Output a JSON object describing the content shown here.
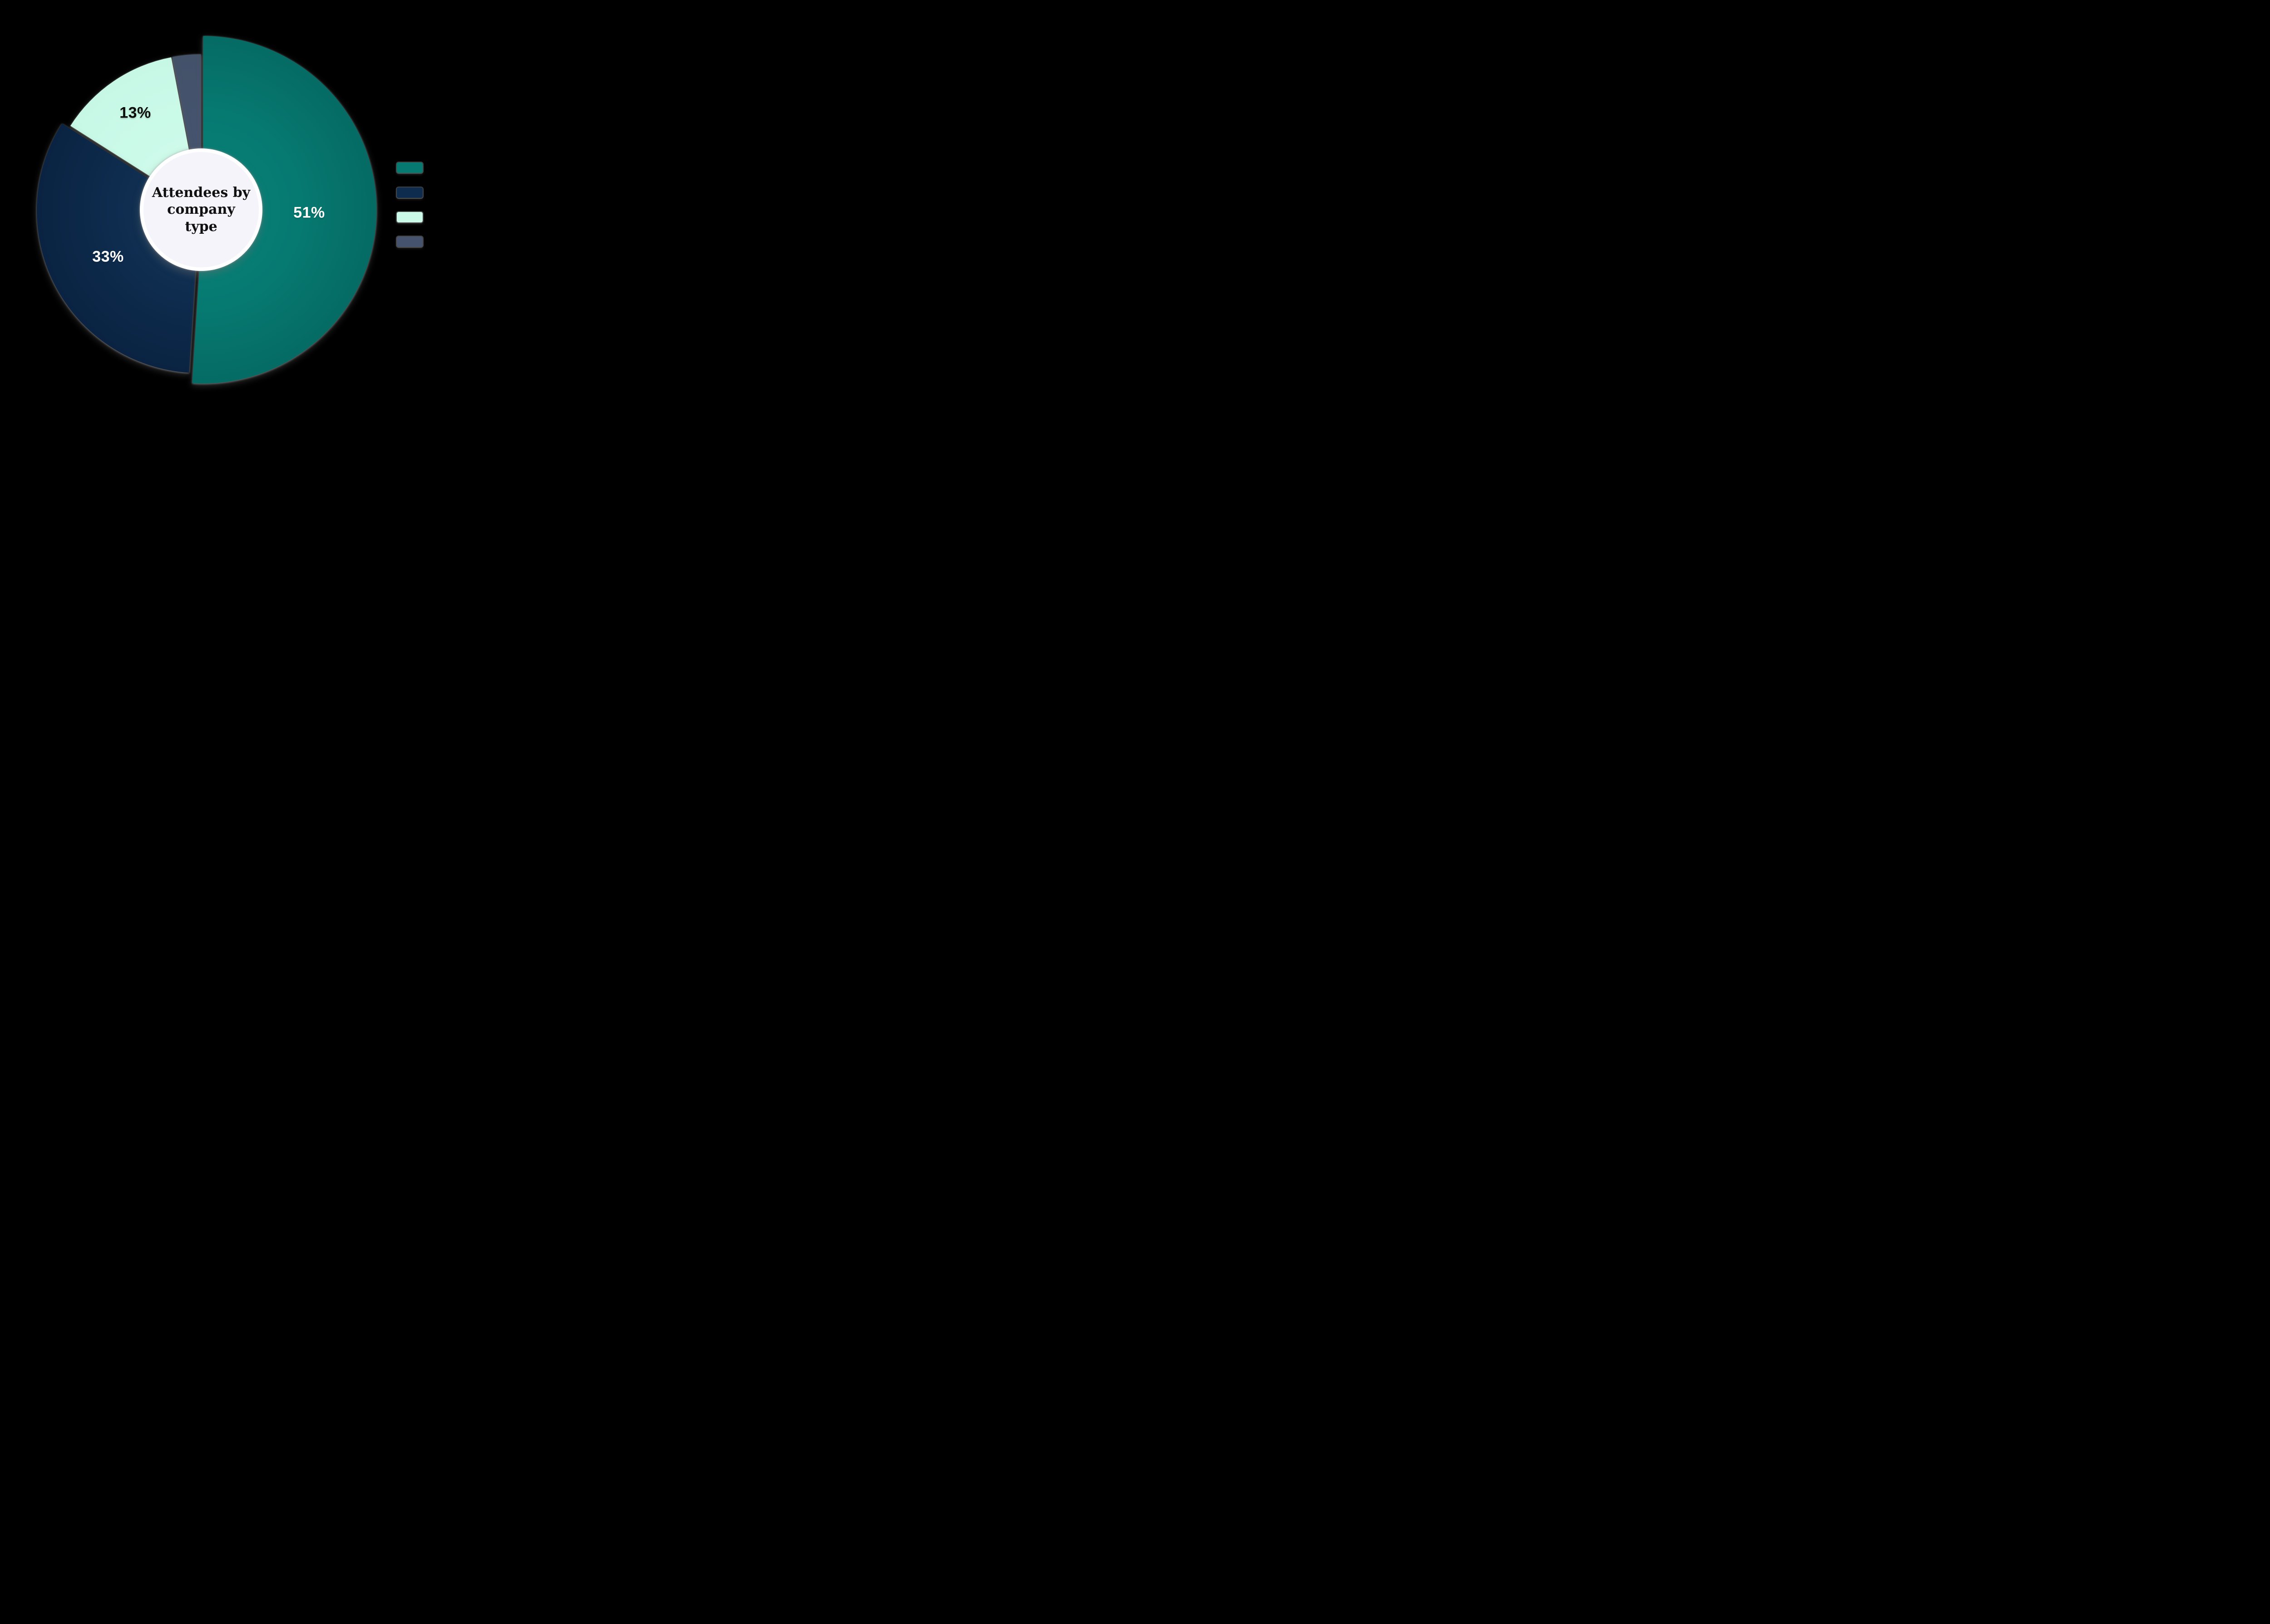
{
  "background_color": "#000000",
  "chart_data": {
    "type": "pie",
    "donut": true,
    "center_title": "Attendees by company type",
    "direction": "clockwise",
    "start_angle_deg": 0,
    "slices": [
      {
        "name": "teal",
        "value": 51,
        "label": "51%",
        "label_visible": true,
        "label_color": "#ffffff",
        "color": "#067a71",
        "color_inner": "#078279",
        "color_outer": "#056b64"
      },
      {
        "name": "navy",
        "value": 33,
        "label": "33%",
        "label_visible": true,
        "label_color": "#ffffff",
        "color": "#0e2c4e",
        "color_inner": "#143659",
        "color_outer": "#0a2342"
      },
      {
        "name": "mint",
        "value": 13,
        "label": "13%",
        "label_visible": true,
        "label_color": "#0d0d0d",
        "color": "#cbfae9",
        "color_inner": "#d8fdf0",
        "color_outer": "#c7f8e6"
      },
      {
        "name": "slate",
        "value": 3,
        "label": "",
        "label_visible": false,
        "label_color": "#ffffff",
        "color": "#45536e",
        "color_inner": "#46556f",
        "color_outer": "#435269"
      }
    ],
    "legend": {
      "position": "right",
      "labels_visible": false,
      "items": [
        {
          "name": "teal",
          "label": "",
          "color": "#067a71"
        },
        {
          "name": "navy",
          "label": "",
          "color": "#0e2c4e"
        },
        {
          "name": "mint",
          "label": "",
          "color": "#cbfae9"
        },
        {
          "name": "slate",
          "label": "",
          "color": "#45536e"
        }
      ]
    },
    "center_badge": {
      "fill": "#f4f4fa",
      "ring": "#ffffff"
    }
  }
}
